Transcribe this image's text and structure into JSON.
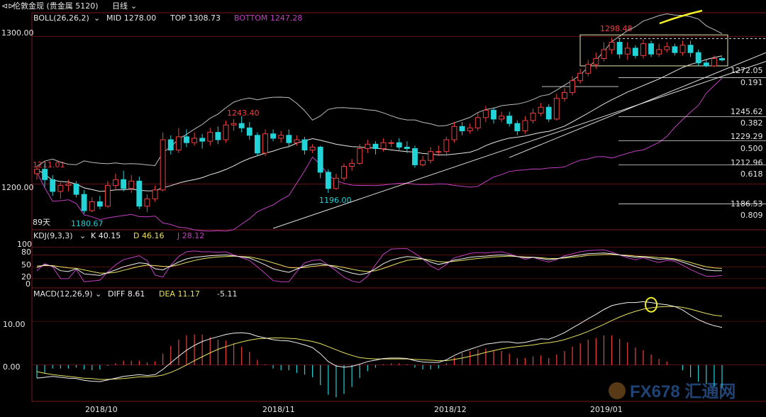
{
  "header": {
    "title": "伦敦金现 (贵金属 5120)",
    "period": "日线",
    "nav_icon": "arrows-icon"
  },
  "colors": {
    "up": "#ef4040",
    "down": "#22d3d8",
    "mid": "#e8e8e8",
    "upper": "#bdbdbd",
    "lower": "#c040c0",
    "trend_yellow": "#f2ef2a",
    "fib": "#dddddd",
    "k": "#f0f0f0",
    "d": "#e8e060",
    "j": "#c040c0",
    "diff": "#f0f0f0",
    "dea": "#e8e060",
    "grid_red": "#8a1818"
  },
  "chart_data": [
    {
      "type": "candlestick",
      "name": "price",
      "legend": {
        "boll": "BOLL(26,26,2)",
        "mid": "MID 1278.00",
        "top": "TOP 1308.73",
        "bottom": "BOTTOM 1247.28"
      },
      "ylim": [
        1170,
        1315
      ],
      "y_ticks": [
        "1300.00",
        "1200.00"
      ],
      "annotations": [
        "1211.01",
        "1243.40",
        "1196.00",
        "1180.67",
        "1298.48",
        "89天"
      ],
      "fib_levels": [
        {
          "price": 1272.05,
          "label": "1272.05",
          "ratio": "0.191"
        },
        {
          "price": 1245.62,
          "label": "1245.62",
          "ratio": "0.382"
        },
        {
          "price": 1229.29,
          "label": "1229.29",
          "ratio": "0.500"
        },
        {
          "price": 1212.96,
          "label": "1212.96",
          "ratio": "0.618"
        },
        {
          "price": 1186.53,
          "label": "1186.53",
          "ratio": "0.809"
        }
      ],
      "candles": [
        [
          1207,
          1210,
          1212,
          1203
        ],
        [
          1210,
          1203,
          1214,
          1198
        ],
        [
          1203,
          1195,
          1206,
          1192
        ],
        [
          1195,
          1199,
          1201,
          1190
        ],
        [
          1199,
          1200,
          1203,
          1195
        ],
        [
          1200,
          1193,
          1202,
          1191
        ],
        [
          1193,
          1182,
          1196,
          1180
        ],
        [
          1182,
          1188,
          1191,
          1181
        ],
        [
          1188,
          1185,
          1192,
          1183
        ],
        [
          1185,
          1199,
          1202,
          1184
        ],
        [
          1199,
          1203,
          1207,
          1196
        ],
        [
          1203,
          1197,
          1209,
          1195
        ],
        [
          1197,
          1202,
          1206,
          1194
        ],
        [
          1202,
          1185,
          1205,
          1183
        ],
        [
          1185,
          1190,
          1193,
          1181
        ],
        [
          1190,
          1196,
          1199,
          1188
        ],
        [
          1196,
          1230,
          1235,
          1195
        ],
        [
          1230,
          1223,
          1233,
          1220
        ],
        [
          1223,
          1232,
          1238,
          1221
        ],
        [
          1232,
          1228,
          1237,
          1225
        ],
        [
          1228,
          1231,
          1235,
          1226
        ],
        [
          1231,
          1229,
          1234,
          1224
        ],
        [
          1229,
          1235,
          1238,
          1226
        ],
        [
          1235,
          1230,
          1239,
          1227
        ],
        [
          1230,
          1240,
          1243,
          1228
        ],
        [
          1240,
          1241,
          1244,
          1236
        ],
        [
          1241,
          1238,
          1246,
          1235
        ],
        [
          1238,
          1233,
          1242,
          1230
        ],
        [
          1233,
          1221,
          1235,
          1219
        ],
        [
          1221,
          1234,
          1237,
          1219
        ],
        [
          1234,
          1231,
          1237,
          1229
        ],
        [
          1231,
          1233,
          1236,
          1228
        ],
        [
          1233,
          1228,
          1237,
          1225
        ],
        [
          1228,
          1230,
          1233,
          1226
        ],
        [
          1230,
          1223,
          1232,
          1220
        ],
        [
          1223,
          1225,
          1227,
          1221
        ],
        [
          1225,
          1208,
          1226,
          1204
        ],
        [
          1208,
          1197,
          1210,
          1194
        ],
        [
          1197,
          1204,
          1207,
          1196
        ],
        [
          1204,
          1212,
          1214,
          1202
        ],
        [
          1212,
          1214,
          1217,
          1209
        ],
        [
          1214,
          1224,
          1227,
          1213
        ],
        [
          1224,
          1227,
          1230,
          1221
        ],
        [
          1227,
          1224,
          1229,
          1220
        ],
        [
          1224,
          1228,
          1231,
          1222
        ],
        [
          1228,
          1228,
          1230,
          1225
        ],
        [
          1228,
          1225,
          1231,
          1223
        ],
        [
          1225,
          1224,
          1229,
          1221
        ],
        [
          1224,
          1213,
          1226,
          1211
        ],
        [
          1213,
          1216,
          1219,
          1212
        ],
        [
          1216,
          1222,
          1225,
          1214
        ],
        [
          1222,
          1222,
          1226,
          1219
        ],
        [
          1222,
          1230,
          1232,
          1219
        ],
        [
          1230,
          1239,
          1242,
          1228
        ],
        [
          1239,
          1236,
          1242,
          1233
        ],
        [
          1236,
          1238,
          1241,
          1234
        ],
        [
          1238,
          1245,
          1248,
          1236
        ],
        [
          1245,
          1250,
          1253,
          1242
        ],
        [
          1250,
          1244,
          1252,
          1241
        ],
        [
          1244,
          1246,
          1249,
          1242
        ],
        [
          1246,
          1241,
          1249,
          1239
        ],
        [
          1241,
          1236,
          1243,
          1233
        ],
        [
          1236,
          1243,
          1246,
          1234
        ],
        [
          1243,
          1248,
          1251,
          1241
        ],
        [
          1248,
          1252,
          1255,
          1246
        ],
        [
          1252,
          1244,
          1254,
          1242
        ],
        [
          1244,
          1258,
          1261,
          1243
        ],
        [
          1258,
          1262,
          1265,
          1256
        ],
        [
          1262,
          1270,
          1273,
          1260
        ],
        [
          1270,
          1275,
          1278,
          1268
        ],
        [
          1275,
          1281,
          1284,
          1273
        ],
        [
          1281,
          1285,
          1289,
          1278
        ],
        [
          1285,
          1291,
          1296,
          1283
        ],
        [
          1291,
          1296,
          1299,
          1288
        ],
        [
          1296,
          1288,
          1298,
          1285
        ],
        [
          1288,
          1292,
          1296,
          1284
        ],
        [
          1292,
          1287,
          1294,
          1285
        ],
        [
          1287,
          1295,
          1298,
          1285
        ],
        [
          1295,
          1288,
          1297,
          1286
        ],
        [
          1288,
          1291,
          1295,
          1286
        ],
        [
          1291,
          1293,
          1296,
          1289
        ],
        [
          1293,
          1289,
          1295,
          1287
        ],
        [
          1289,
          1294,
          1297,
          1287
        ],
        [
          1294,
          1289,
          1297,
          1286
        ],
        [
          1289,
          1282,
          1291,
          1280
        ],
        [
          1282,
          1280,
          1284,
          1279
        ],
        [
          1280,
          1285,
          1287,
          1279
        ],
        [
          1285,
          1284,
          1286,
          1283
        ]
      ]
    },
    {
      "type": "line",
      "name": "kdj",
      "legend": {
        "title": "KDJ(9,3,3)",
        "k": "K 40.15",
        "d": "D 46.16",
        "j": "J 28.12"
      },
      "ylim": [
        0,
        115
      ],
      "y_ticks": [
        "100",
        "80",
        "50",
        "20",
        "0"
      ],
      "k": [
        48,
        55,
        52,
        40,
        38,
        45,
        32,
        30,
        28,
        35,
        42,
        50,
        55,
        60,
        58,
        45,
        42,
        52,
        62,
        70,
        74,
        76,
        78,
        79,
        80,
        78,
        75,
        72,
        64,
        55,
        45,
        40,
        36,
        44,
        52,
        56,
        58,
        54,
        48,
        40,
        34,
        30,
        34,
        45,
        58,
        67,
        72,
        76,
        74,
        70,
        62,
        56,
        60,
        67,
        70,
        74,
        76,
        77,
        79,
        80,
        79,
        76,
        73,
        74,
        71,
        68,
        70,
        74,
        77,
        80,
        83,
        84,
        85,
        83,
        80,
        77,
        74,
        75,
        72,
        69,
        70,
        68,
        62,
        55,
        48,
        42,
        40,
        40
      ],
      "d": [
        52,
        53,
        53,
        50,
        47,
        46,
        42,
        38,
        34,
        34,
        36,
        41,
        46,
        51,
        54,
        53,
        51,
        51,
        55,
        61,
        66,
        70,
        73,
        75,
        76,
        77,
        76,
        75,
        71,
        66,
        60,
        54,
        48,
        47,
        48,
        51,
        53,
        54,
        52,
        48,
        44,
        40,
        38,
        40,
        46,
        53,
        60,
        66,
        69,
        70,
        67,
        63,
        62,
        64,
        66,
        69,
        71,
        73,
        75,
        76,
        77,
        76,
        75,
        74,
        73,
        71,
        71,
        72,
        74,
        76,
        79,
        80,
        81,
        81,
        80,
        79,
        77,
        76,
        75,
        73,
        72,
        70,
        66,
        61,
        55,
        50,
        47,
        46
      ],
      "j": [
        40,
        58,
        50,
        20,
        20,
        43,
        12,
        14,
        16,
        37,
        55,
        68,
        73,
        78,
        66,
        29,
        24,
        54,
        76,
        88,
        90,
        88,
        88,
        87,
        88,
        80,
        73,
        66,
        50,
        33,
        15,
        12,
        12,
        38,
        60,
        66,
        68,
        54,
        40,
        24,
        14,
        10,
        26,
        55,
        82,
        95,
        96,
        96,
        84,
        70,
        52,
        42,
        56,
        73,
        78,
        84,
        86,
        85,
        87,
        88,
        83,
        76,
        69,
        74,
        67,
        62,
        68,
        78,
        83,
        88,
        91,
        92,
        93,
        87,
        80,
        73,
        68,
        73,
        66,
        61,
        66,
        64,
        54,
        43,
        34,
        26,
        26,
        28
      ]
    },
    {
      "type": "bar+line",
      "name": "macd",
      "legend": {
        "title": "MACD(12,26,9)",
        "diff": "DIFF 8.61",
        "dea": "DEA 11.17",
        "macd": "-5.11"
      },
      "ylim": [
        -8,
        17
      ],
      "y_ticks": [
        "10.00",
        "0.00"
      ],
      "diff": [
        -3,
        -2.8,
        -2.6,
        -2.8,
        -3.0,
        -3.1,
        -3.5,
        -3.7,
        -3.8,
        -3.4,
        -3.0,
        -2.6,
        -2.4,
        -2.2,
        -2.4,
        -2.2,
        -1.0,
        0.5,
        2.0,
        3.4,
        4.5,
        5.4,
        6.0,
        6.5,
        7.0,
        7.3,
        7.4,
        7.2,
        6.6,
        6.2,
        5.8,
        5.6,
        5.5,
        5.1,
        4.6,
        4.0,
        2.6,
        0.8,
        -0.2,
        -0.5,
        -0.3,
        0.2,
        0.8,
        1.1,
        1.5,
        1.6,
        1.6,
        1.5,
        1.0,
        0.7,
        0.6,
        0.6,
        1.2,
        2.2,
        3.0,
        3.6,
        4.2,
        4.8,
        5.0,
        5.3,
        5.3,
        5.0,
        5.2,
        5.6,
        6.0,
        5.9,
        6.6,
        7.4,
        8.5,
        9.5,
        10.6,
        11.6,
        12.7,
        13.6,
        14.0,
        14.3,
        14.3,
        14.5,
        14.3,
        14.0,
        13.8,
        13.4,
        12.6,
        11.4,
        10.4,
        9.6,
        9.0,
        8.6
      ],
      "dea": [
        -1.5,
        -1.9,
        -2.2,
        -2.4,
        -2.6,
        -2.8,
        -3.0,
        -3.1,
        -3.3,
        -3.3,
        -3.2,
        -3.1,
        -2.9,
        -2.7,
        -2.7,
        -2.6,
        -2.3,
        -1.7,
        -0.9,
        0.0,
        1.0,
        1.9,
        2.8,
        3.6,
        4.2,
        4.8,
        5.3,
        5.7,
        6.0,
        6.1,
        6.2,
        6.2,
        6.1,
        6.0,
        5.7,
        5.4,
        4.9,
        4.2,
        3.5,
        2.8,
        2.2,
        1.7,
        1.5,
        1.4,
        1.4,
        1.4,
        1.4,
        1.4,
        1.3,
        1.2,
        1.1,
        1.0,
        1.0,
        1.3,
        1.6,
        2.0,
        2.4,
        2.9,
        3.3,
        3.7,
        4.0,
        4.2,
        4.4,
        4.6,
        4.9,
        5.1,
        5.4,
        5.8,
        6.4,
        7.0,
        7.7,
        8.5,
        9.3,
        10.2,
        11.0,
        11.7,
        12.3,
        12.8,
        13.1,
        13.3,
        13.4,
        13.4,
        13.2,
        12.8,
        12.3,
        11.8,
        11.4,
        11.2
      ]
    }
  ],
  "x_ticks": [
    "2018/10",
    "2018/11",
    "2018/12",
    "2019/01"
  ],
  "watermark": "FX678 汇通网"
}
